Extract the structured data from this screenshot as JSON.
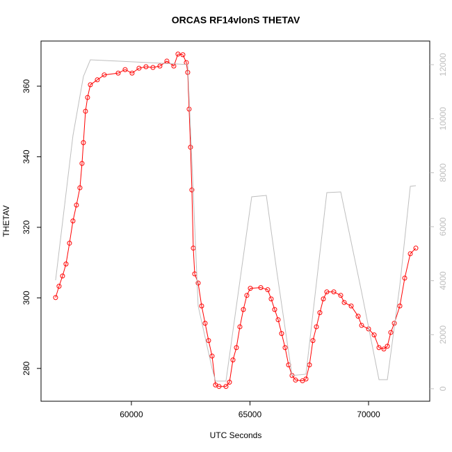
{
  "chart_data": {
    "type": "line",
    "title": "ORCAS RF14vlonS THETAV",
    "xlabel": "UTC Seconds",
    "ylabel": "THETAV",
    "xlim": [
      56190,
      72580
    ],
    "xticks": [
      60000,
      65000,
      70000
    ],
    "ylim": [
      270.7,
      372.8
    ],
    "yticks": [
      280,
      300,
      320,
      340,
      360
    ],
    "y2lim": [
      -464,
      12876
    ],
    "y2ticks": [
      0,
      2000,
      4000,
      6000,
      8000,
      10000,
      12000
    ],
    "series": [
      {
        "color": "#ff0000",
        "marker": "circle",
        "x": [
          56804,
          56950,
          57097,
          57243,
          57390,
          57536,
          57683,
          57830,
          57918,
          57977,
          58065,
          58152,
          58270,
          58563,
          58856,
          59443,
          59736,
          60029,
          60322,
          60616,
          60909,
          61202,
          61496,
          61789,
          61965,
          62170,
          62317,
          62375,
          62434,
          62493,
          62551,
          62610,
          62669,
          62815,
          62962,
          63109,
          63255,
          63402,
          63548,
          63695,
          63988,
          64135,
          64282,
          64428,
          64575,
          64721,
          64868,
          65015,
          65455,
          65748,
          65894,
          66041,
          66188,
          66334,
          66481,
          66628,
          66774,
          66921,
          67214,
          67361,
          67507,
          67654,
          67801,
          67947,
          68094,
          68240,
          68534,
          68827,
          68974,
          69267,
          69560,
          69707,
          70000,
          70235,
          70440,
          70645,
          70792,
          70938,
          71085,
          71320,
          71525,
          71760,
          71994
        ],
        "values": [
          300.1,
          303.3,
          306.2,
          309.6,
          315.5,
          321.8,
          326.3,
          331.2,
          338.1,
          344.0,
          352.9,
          356.8,
          360.4,
          361.8,
          363.2,
          363.7,
          364.7,
          363.7,
          365.1,
          365.5,
          365.3,
          365.7,
          367.1,
          365.7,
          369.1,
          368.9,
          366.7,
          363.9,
          353.5,
          342.7,
          330.6,
          314.1,
          306.8,
          304.2,
          297.7,
          292.8,
          287.9,
          283.5,
          275.3,
          274.9,
          274.9,
          276.1,
          282.4,
          285.9,
          291.8,
          296.7,
          300.7,
          302.7,
          302.9,
          302.3,
          299.7,
          296.7,
          293.8,
          289.9,
          285.9,
          281.0,
          278.0,
          276.7,
          276.5,
          277.0,
          281.0,
          287.9,
          291.8,
          295.8,
          299.7,
          301.7,
          301.7,
          300.7,
          298.7,
          297.7,
          294.8,
          292.2,
          291.2,
          289.5,
          285.9,
          285.5,
          286.3,
          290.2,
          292.8,
          297.7,
          305.6,
          312.5,
          314.1
        ]
      },
      {
        "color": "#bebebe",
        "axis": "y2",
        "x": [
          56804,
          57536,
          57977,
          58270,
          61936,
          62375,
          62815,
          63402,
          63548,
          63988,
          64428,
          65073,
          65689,
          66129,
          66774,
          67361,
          68240,
          68827,
          69707,
          70440,
          70792,
          71320,
          71760,
          71994
        ],
        "values": [
          4017,
          9374,
          11563,
          12181,
          12027,
          12001,
          3065,
          747,
          283,
          283,
          3065,
          7108,
          7159,
          4352,
          489,
          541,
          7262,
          7288,
          3580,
          335,
          335,
          3837,
          7494,
          7520
        ]
      }
    ]
  }
}
